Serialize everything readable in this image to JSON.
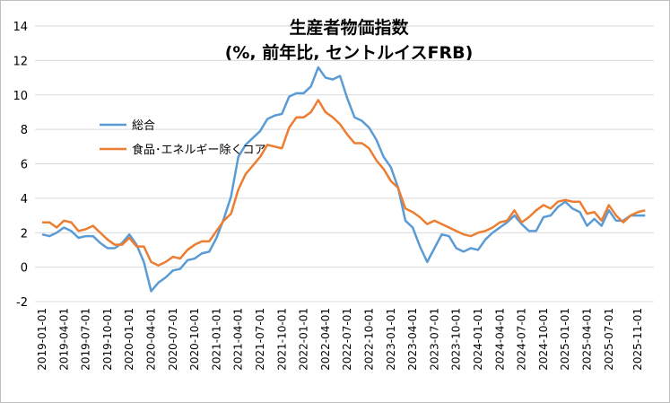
{
  "chart_data": {
    "type": "line",
    "title": "生産者物価指数",
    "subtitle": "(%, 前年比, セントルイスFRB)",
    "xlabel": "",
    "ylabel": "",
    "ylim": [
      -2,
      14
    ],
    "yticks": [
      -2,
      0,
      2,
      4,
      6,
      8,
      10,
      12,
      14
    ],
    "grid": true,
    "legend": "left-middle",
    "x_start": "2019-01",
    "x_tick_labels": [
      "2019-01-01",
      "2019-04-01",
      "2019-07-01",
      "2019-10-01",
      "2020-01-01",
      "2020-04-01",
      "2020-07-01",
      "2020-10-01",
      "2021-01-01",
      "2021-04-01",
      "2021-07-01",
      "2021-10-01",
      "2022-01-01",
      "2022-04-01",
      "2022-07-01",
      "2022-10-01",
      "2023-01-01",
      "2023-04-01",
      "2023-07-01",
      "2023-10-01",
      "2024-01-01",
      "2024-04-01",
      "2024-07-01",
      "2024-10-01",
      "2025-01-01",
      "2025-04-01",
      "2025-07-01",
      "2025-11-01"
    ],
    "series": [
      {
        "name": "総合",
        "color": "#5b9bd5",
        "values": [
          1.9,
          1.8,
          2.0,
          2.3,
          2.1,
          1.7,
          1.8,
          1.8,
          1.4,
          1.1,
          1.1,
          1.4,
          1.9,
          1.3,
          0.3,
          -1.4,
          -0.9,
          -0.6,
          -0.2,
          -0.1,
          0.4,
          0.5,
          0.8,
          0.9,
          1.7,
          2.8,
          4.1,
          6.4,
          7.1,
          7.5,
          7.9,
          8.6,
          8.8,
          8.9,
          9.9,
          10.1,
          10.1,
          10.5,
          11.6,
          11.0,
          10.9,
          11.1,
          9.8,
          8.7,
          8.5,
          8.1,
          7.4,
          6.4,
          5.8,
          4.6,
          2.7,
          2.3,
          1.2,
          0.3,
          1.1,
          1.9,
          1.8,
          1.1,
          0.9,
          1.1,
          1.0,
          1.6,
          2.0,
          2.3,
          2.6,
          3.0,
          2.5,
          2.1,
          2.1,
          2.9,
          3.0,
          3.5,
          3.8,
          3.4,
          3.2,
          2.4,
          2.8,
          2.4,
          3.3,
          2.7,
          2.7,
          3.0,
          3.0,
          3.0
        ]
      },
      {
        "name": "食品･エネルギー除くコア",
        "color": "#ed7d31",
        "values": [
          2.6,
          2.6,
          2.3,
          2.7,
          2.6,
          2.1,
          2.2,
          2.4,
          2.0,
          1.6,
          1.3,
          1.3,
          1.7,
          1.2,
          1.2,
          0.3,
          0.1,
          0.3,
          0.6,
          0.5,
          1.0,
          1.3,
          1.5,
          1.5,
          2.1,
          2.7,
          3.1,
          4.5,
          5.4,
          5.9,
          6.4,
          7.1,
          7.0,
          6.9,
          8.1,
          8.7,
          8.7,
          9.0,
          9.7,
          9.0,
          8.7,
          8.3,
          7.7,
          7.2,
          7.2,
          6.9,
          6.2,
          5.7,
          5.0,
          4.6,
          3.4,
          3.2,
          2.9,
          2.5,
          2.7,
          2.5,
          2.3,
          2.1,
          1.9,
          1.8,
          2.0,
          2.1,
          2.3,
          2.6,
          2.7,
          3.3,
          2.6,
          2.9,
          3.3,
          3.6,
          3.4,
          3.8,
          3.9,
          3.8,
          3.8,
          3.1,
          3.2,
          2.7,
          3.6,
          3.0,
          2.6,
          3.0,
          3.2,
          3.3
        ]
      }
    ]
  }
}
